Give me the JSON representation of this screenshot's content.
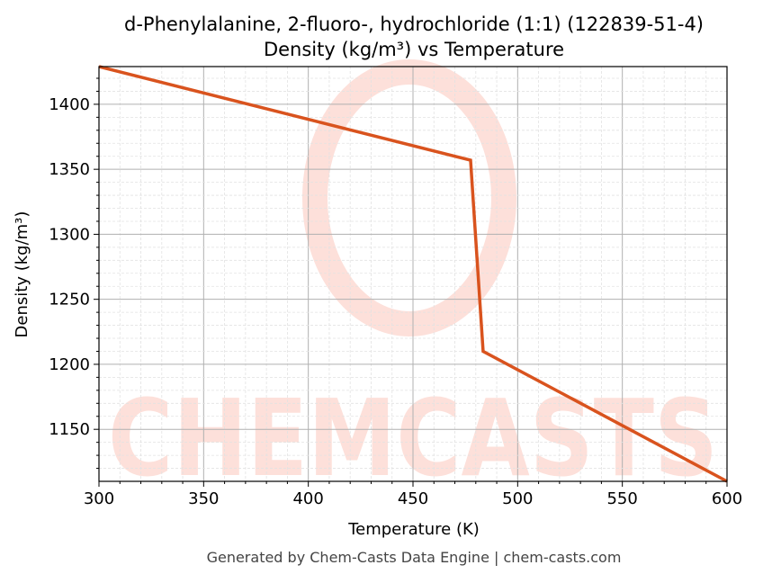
{
  "chart_data": {
    "type": "line",
    "title": "d-Phenylalanine, 2-fluoro-, hydrochloride (1:1) (122839-51-4)",
    "subtitle": "Density (kg/m³) vs Temperature",
    "xlabel": "Temperature (K)",
    "ylabel": "Density (kg/m³)",
    "xlim": [
      300,
      600
    ],
    "ylim": [
      1110,
      1429
    ],
    "xticks": [
      300,
      350,
      400,
      450,
      500,
      550,
      600
    ],
    "yticks": [
      1150,
      1200,
      1250,
      1300,
      1350,
      1400
    ],
    "grid": true,
    "series": [
      {
        "x": [
          300,
          477.5,
          483.5,
          600
        ],
        "y": [
          1429,
          1357,
          1210,
          1110
        ],
        "color": "#d9531e"
      }
    ],
    "watermark": "CHEMCASTS",
    "footer": "Generated by Chem-Casts Data Engine | chem-casts.com"
  }
}
